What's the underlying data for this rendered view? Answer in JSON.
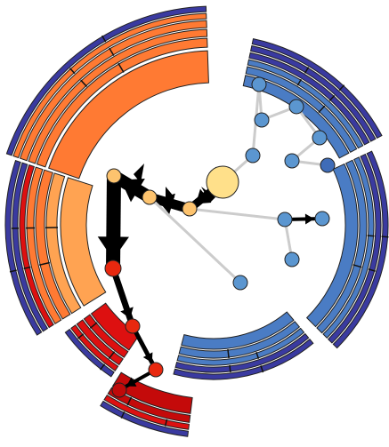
{
  "colors": {
    "background": "#ffffff",
    "edge_gray": "#cccccc",
    "edge_black": "#000000",
    "outline": "#222222",
    "tick": "#111111",
    "root_node": "#ffe08a",
    "warm_light_node": "#fdc36e",
    "warm_red_node": "#e8280f",
    "deep_red_node": "#c00a0a",
    "blue_node": "#5b96d0",
    "dark_blue_node": "#3f6cb8",
    "arc_orange": "#ff7a33",
    "arc_light_orange": "#ffa352",
    "arc_red": "#dd1010",
    "arc_dark_red": "#c40a0a",
    "arc_blue": "#4a7cc4",
    "arc_navy": "#3a3aa0"
  },
  "nodes": [
    {
      "id": "root",
      "color_key": "root_node"
    },
    {
      "id": "n-upper-left",
      "color_key": "warm_light_node"
    },
    {
      "id": "n-center-a",
      "color_key": "warm_light_node"
    },
    {
      "id": "n-center-b",
      "color_key": "warm_light_node"
    },
    {
      "id": "n-red-hub",
      "color_key": "warm_red_node"
    },
    {
      "id": "n-red-1",
      "color_key": "warm_red_node"
    },
    {
      "id": "n-red-2",
      "color_key": "warm_red_node"
    },
    {
      "id": "n-deep-red",
      "color_key": "deep_red_node"
    },
    {
      "id": "n-blue-1",
      "color_key": "blue_node"
    },
    {
      "id": "n-blue-2",
      "color_key": "blue_node"
    },
    {
      "id": "n-blue-3",
      "color_key": "blue_node"
    },
    {
      "id": "n-blue-4",
      "color_key": "blue_node"
    },
    {
      "id": "n-blue-5",
      "color_key": "blue_node"
    },
    {
      "id": "n-blue-6",
      "color_key": "blue_node"
    },
    {
      "id": "n-blue-7",
      "color_key": "dark_blue_node"
    },
    {
      "id": "n-blue-8",
      "color_key": "blue_node"
    },
    {
      "id": "n-blue-9",
      "color_key": "blue_node"
    },
    {
      "id": "n-blue-10",
      "color_key": "blue_node"
    },
    {
      "id": "n-blue-11",
      "color_key": "blue_node"
    }
  ],
  "edges": [
    {
      "from": "root",
      "to": "n-center-b",
      "style": "black"
    },
    {
      "from": "n-center-b",
      "to": "n-center-a",
      "style": "black"
    },
    {
      "from": "n-center-a",
      "to": "n-upper-left",
      "style": "black"
    },
    {
      "from": "n-upper-left",
      "to": "n-red-hub",
      "style": "black"
    },
    {
      "from": "n-red-hub",
      "to": "n-red-1",
      "style": "black"
    },
    {
      "from": "n-red-1",
      "to": "n-red-2",
      "style": "black"
    },
    {
      "from": "n-red-2",
      "to": "n-deep-red",
      "style": "black"
    },
    {
      "from": "root",
      "to": "n-blue-1",
      "style": "gray"
    },
    {
      "from": "n-blue-1",
      "to": "n-blue-2",
      "style": "gray"
    },
    {
      "from": "n-blue-2",
      "to": "n-blue-3",
      "style": "gray"
    },
    {
      "from": "n-blue-3",
      "to": "n-blue-4",
      "style": "gray"
    },
    {
      "from": "n-blue-4",
      "to": "n-blue-5",
      "style": "gray"
    },
    {
      "from": "n-blue-5",
      "to": "n-blue-6",
      "style": "gray"
    },
    {
      "from": "n-blue-6",
      "to": "n-blue-7",
      "style": "gray"
    },
    {
      "from": "n-center-b",
      "to": "n-blue-8",
      "style": "gray"
    },
    {
      "from": "n-blue-8",
      "to": "n-blue-9",
      "style": "black"
    },
    {
      "from": "n-blue-8",
      "to": "n-blue-10",
      "style": "gray"
    },
    {
      "from": "n-center-a",
      "to": "n-blue-11",
      "style": "gray"
    }
  ]
}
